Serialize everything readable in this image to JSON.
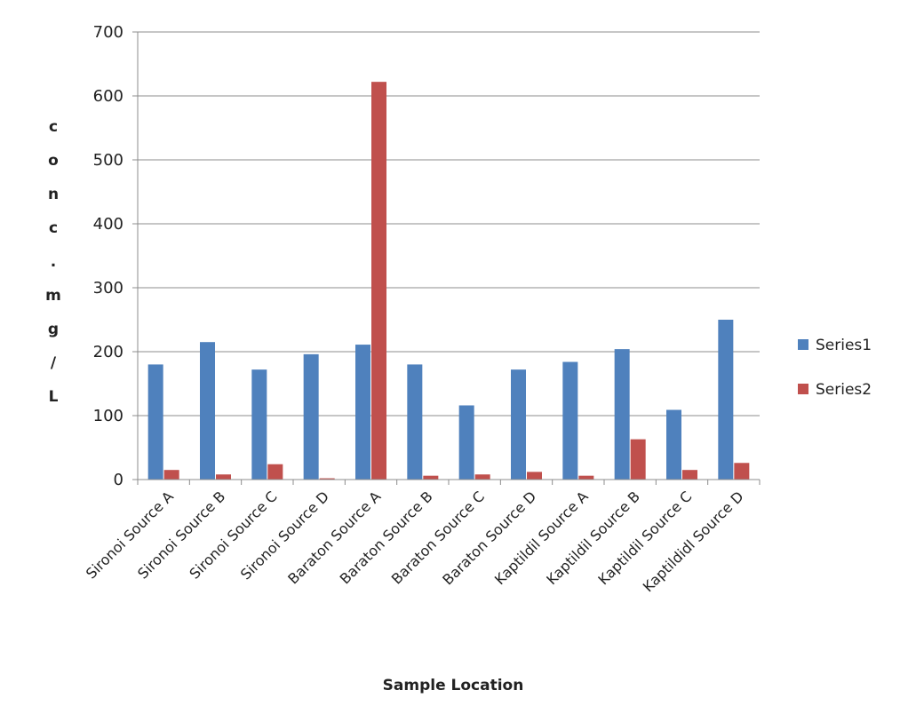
{
  "chart_data": {
    "type": "bar",
    "title": "",
    "xlabel": "Sample Location",
    "ylabel": "c o n c . m g / L",
    "ylabel_chars": [
      "c",
      "o",
      "n",
      "c",
      ".",
      "m",
      "g",
      "/",
      "L"
    ],
    "ylim": [
      0,
      700
    ],
    "yticks": [
      0,
      100,
      200,
      300,
      400,
      500,
      600,
      700
    ],
    "grid": true,
    "legend_position": "right",
    "categories": [
      "Sironoi Source A",
      "Sironoi Source B",
      "Sironoi Source C",
      "Sironoi Source D",
      "Baraton Source A",
      "Baraton Source B",
      "Baraton Source C",
      "Baraton Source D",
      "Kaptildil Source A",
      "Kaptildil Source B",
      "Kaptildil Source C",
      "Kaptildidl Source D"
    ],
    "series": [
      {
        "name": "Series1",
        "color": "#4f81bd",
        "values": [
          180,
          215,
          172,
          196,
          211,
          180,
          116,
          172,
          184,
          204,
          109,
          250
        ]
      },
      {
        "name": "Series2",
        "color": "#c0504d",
        "values": [
          15,
          8,
          24,
          2,
          622,
          6,
          8,
          12,
          6,
          63,
          15,
          26
        ]
      }
    ]
  }
}
